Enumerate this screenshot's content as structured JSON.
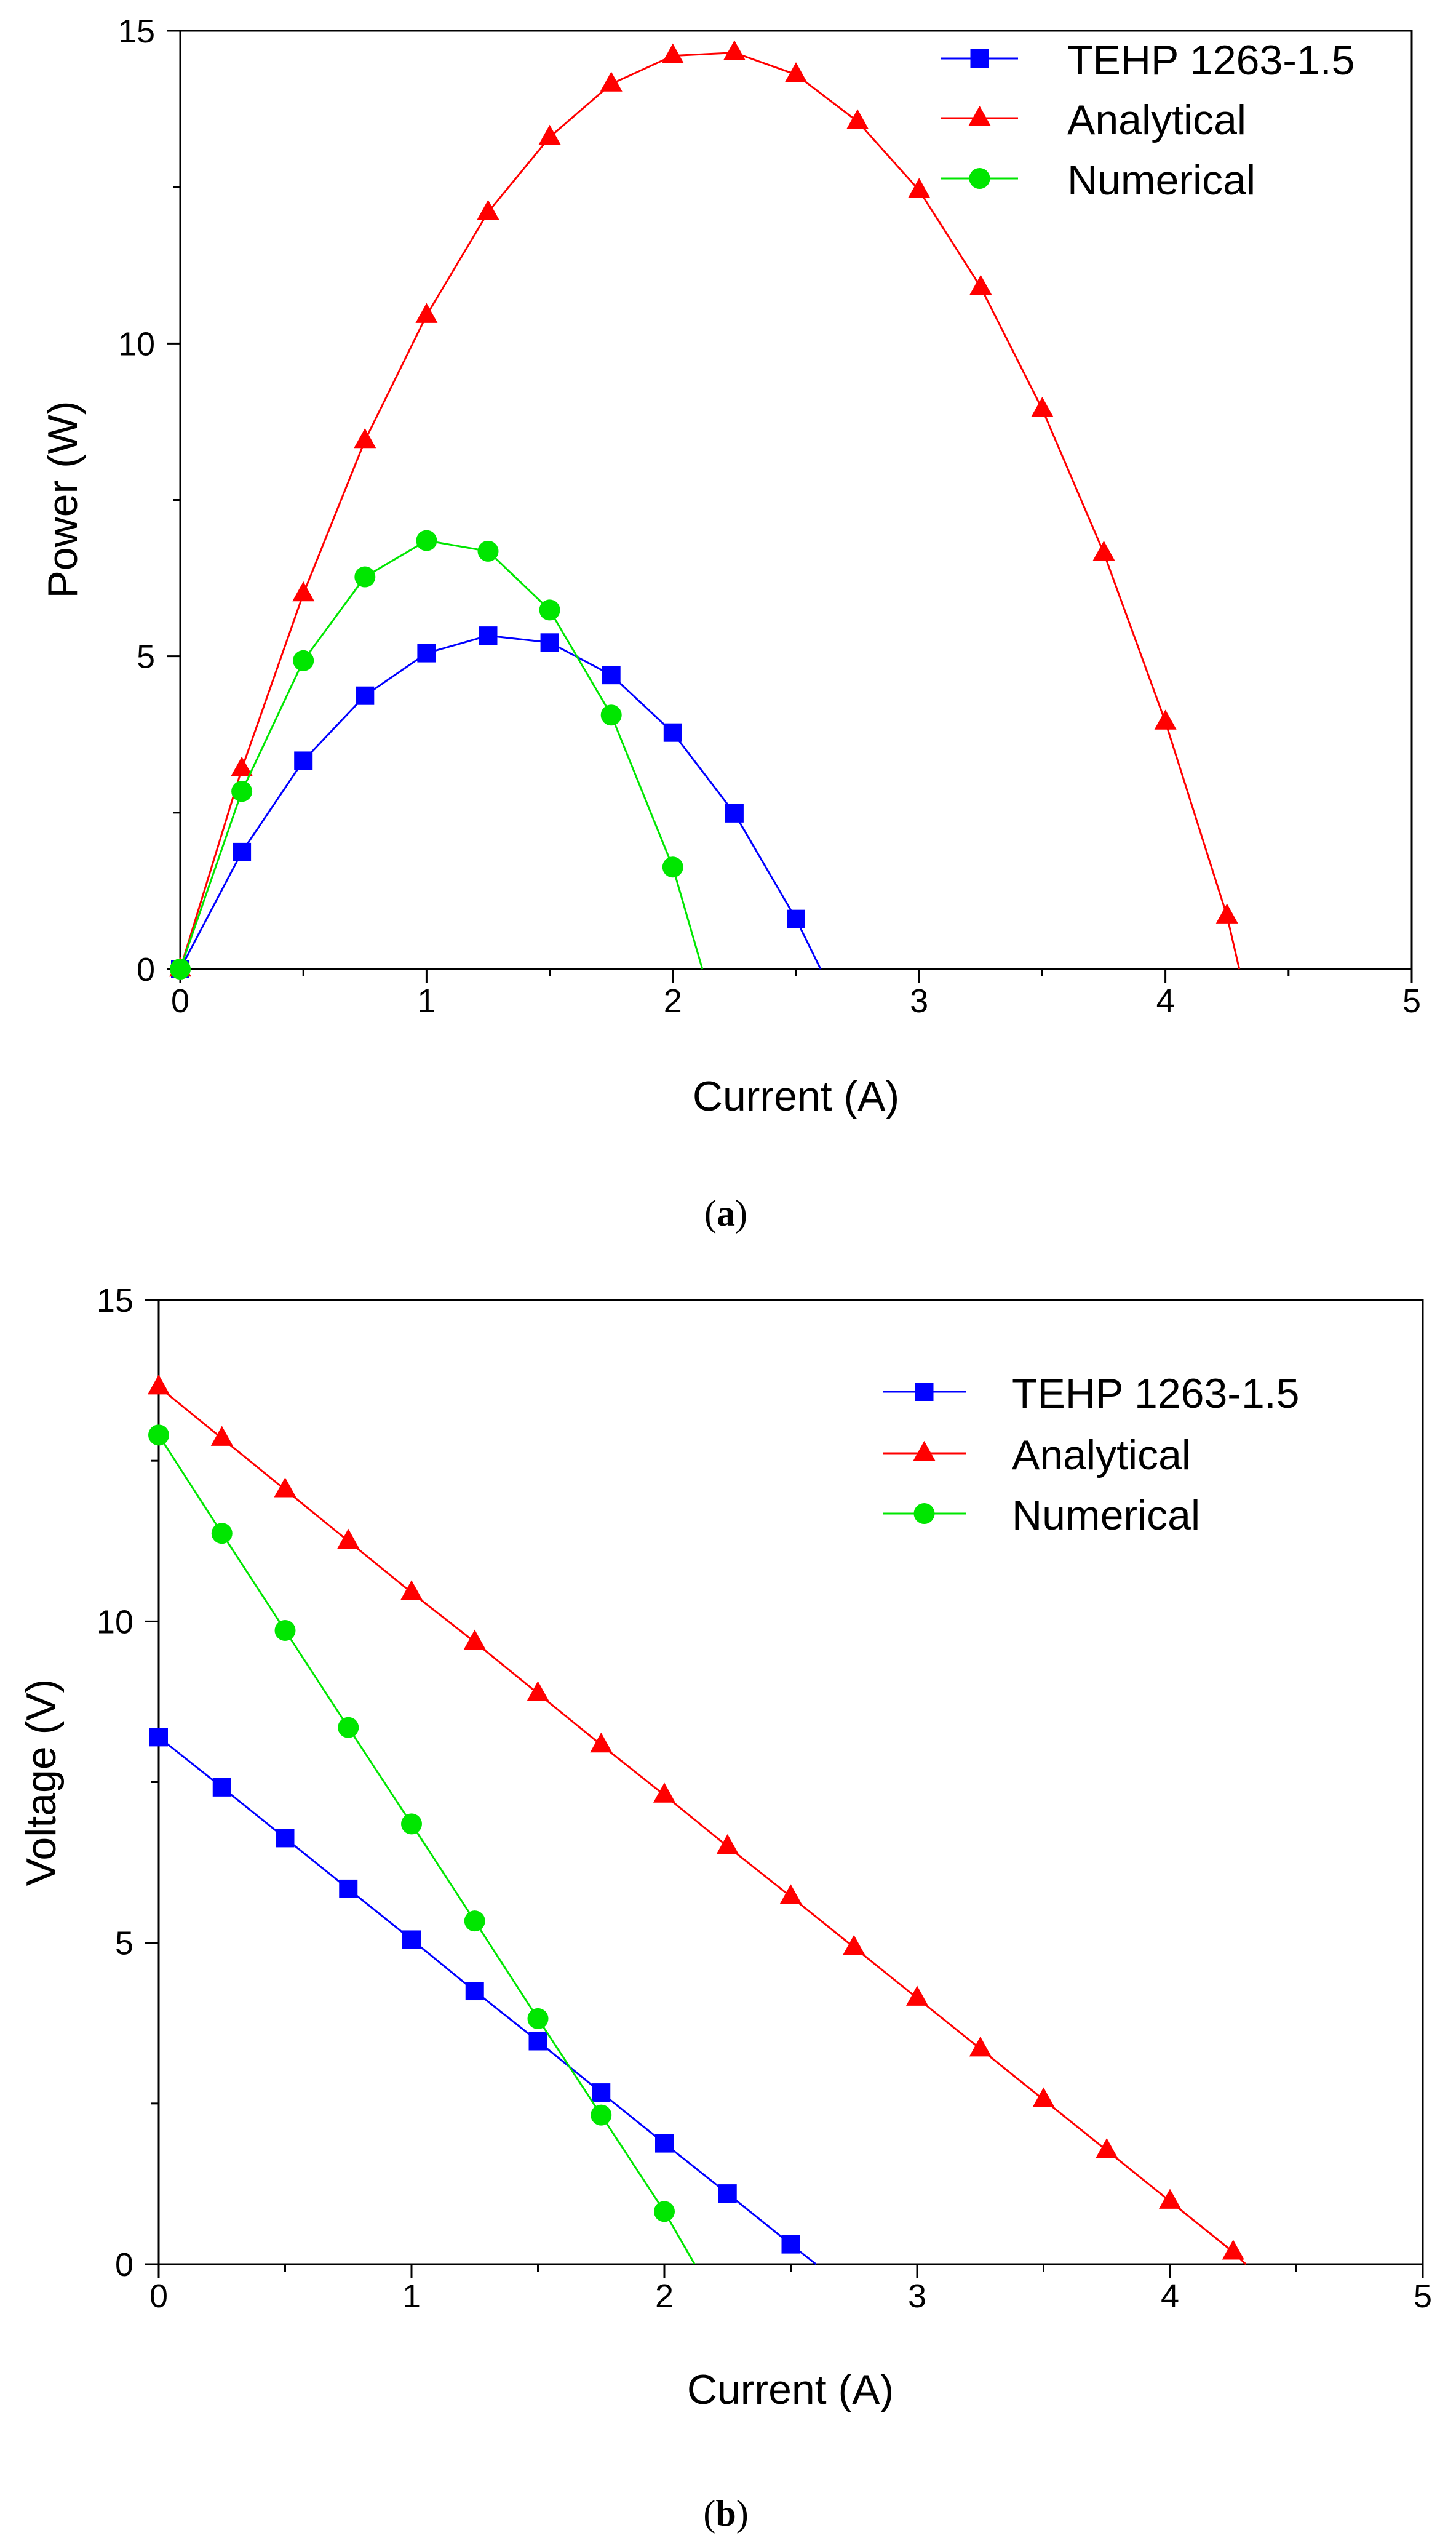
{
  "colors": {
    "TEHP 1263-1.5": "#0000ff",
    "Analytical": "#ff0000",
    "Numerical": "#00e600"
  },
  "chart_data": [
    {
      "type": "line",
      "caption": "(a)",
      "caption_letter": "a",
      "xlabel": "Current (A)",
      "ylabel": "Power (W)",
      "xlim": [
        0,
        5
      ],
      "ylim": [
        0,
        15
      ],
      "xticks": [
        "0",
        "1",
        "2",
        "3",
        "4",
        "5"
      ],
      "yticks": [
        "0",
        "5",
        "10",
        "15"
      ],
      "legend_position": "top-right",
      "series": [
        {
          "name": "TEHP 1263-1.5",
          "marker": "square",
          "x": [
            0,
            0.25,
            0.5,
            0.75,
            1.0,
            1.25,
            1.5,
            1.75,
            2.0,
            2.25,
            2.5
          ],
          "y": [
            0,
            1.87,
            3.33,
            4.37,
            5.05,
            5.33,
            5.22,
            4.7,
            3.78,
            2.49,
            0.8
          ],
          "line_end": [
            2.6,
            0
          ]
        },
        {
          "name": "Analytical",
          "marker": "triangle",
          "x": [
            0,
            0.25,
            0.5,
            0.75,
            1.0,
            1.25,
            1.5,
            1.75,
            2.0,
            2.25,
            2.5,
            2.75,
            3.0,
            3.25,
            3.5,
            3.75,
            4.0,
            4.25
          ],
          "y": [
            0,
            3.2,
            6.0,
            8.45,
            10.45,
            12.1,
            13.3,
            14.15,
            14.6,
            14.65,
            14.3,
            13.55,
            12.45,
            10.9,
            8.95,
            6.65,
            3.95,
            0.85
          ],
          "line_end": [
            4.3,
            0
          ]
        },
        {
          "name": "Numerical",
          "marker": "circle",
          "x": [
            0,
            0.25,
            0.5,
            0.75,
            1.0,
            1.25,
            1.5,
            1.75,
            2.0
          ],
          "y": [
            0,
            2.84,
            4.93,
            6.27,
            6.85,
            6.68,
            5.74,
            4.06,
            1.63
          ],
          "line_end": [
            2.12,
            0
          ]
        }
      ]
    },
    {
      "type": "line",
      "caption": "(b)",
      "caption_letter": "b",
      "xlabel": "Current (A)",
      "ylabel": "Voltage (V)",
      "xlim": [
        0,
        5
      ],
      "ylim": [
        0,
        15
      ],
      "xticks": [
        "0",
        "1",
        "2",
        "3",
        "4",
        "5"
      ],
      "yticks": [
        "0",
        "5",
        "10",
        "15"
      ],
      "legend_position": "top-right",
      "series": [
        {
          "name": "TEHP 1263-1.5",
          "marker": "square",
          "x": [
            0,
            0.25,
            0.5,
            0.75,
            1.0,
            1.25,
            1.5,
            1.75,
            2.0,
            2.25,
            2.5
          ],
          "y": [
            8.2,
            7.42,
            6.63,
            5.84,
            5.05,
            4.25,
            3.47,
            2.67,
            1.88,
            1.1,
            0.31
          ],
          "line_end": [
            2.6,
            0
          ]
        },
        {
          "name": "Analytical",
          "marker": "triangle",
          "x": [
            0,
            0.25,
            0.5,
            0.75,
            1.0,
            1.25,
            1.5,
            1.75,
            2.0,
            2.25,
            2.5,
            2.75,
            3.0,
            3.25,
            3.5,
            3.75,
            4.0,
            4.25
          ],
          "y": [
            13.65,
            12.85,
            12.05,
            11.25,
            10.45,
            9.68,
            8.88,
            8.08,
            7.3,
            6.5,
            5.72,
            4.93,
            4.14,
            3.35,
            2.56,
            1.77,
            0.98,
            0.19
          ],
          "line_end": [
            4.3,
            0
          ]
        },
        {
          "name": "Numerical",
          "marker": "circle",
          "x": [
            0,
            0.25,
            0.5,
            0.75,
            1.0,
            1.25,
            1.5,
            1.75,
            2.0
          ],
          "y": [
            12.9,
            11.37,
            9.86,
            8.35,
            6.85,
            5.34,
            3.82,
            2.32,
            0.82
          ],
          "line_end": [
            2.12,
            0
          ]
        }
      ]
    }
  ]
}
